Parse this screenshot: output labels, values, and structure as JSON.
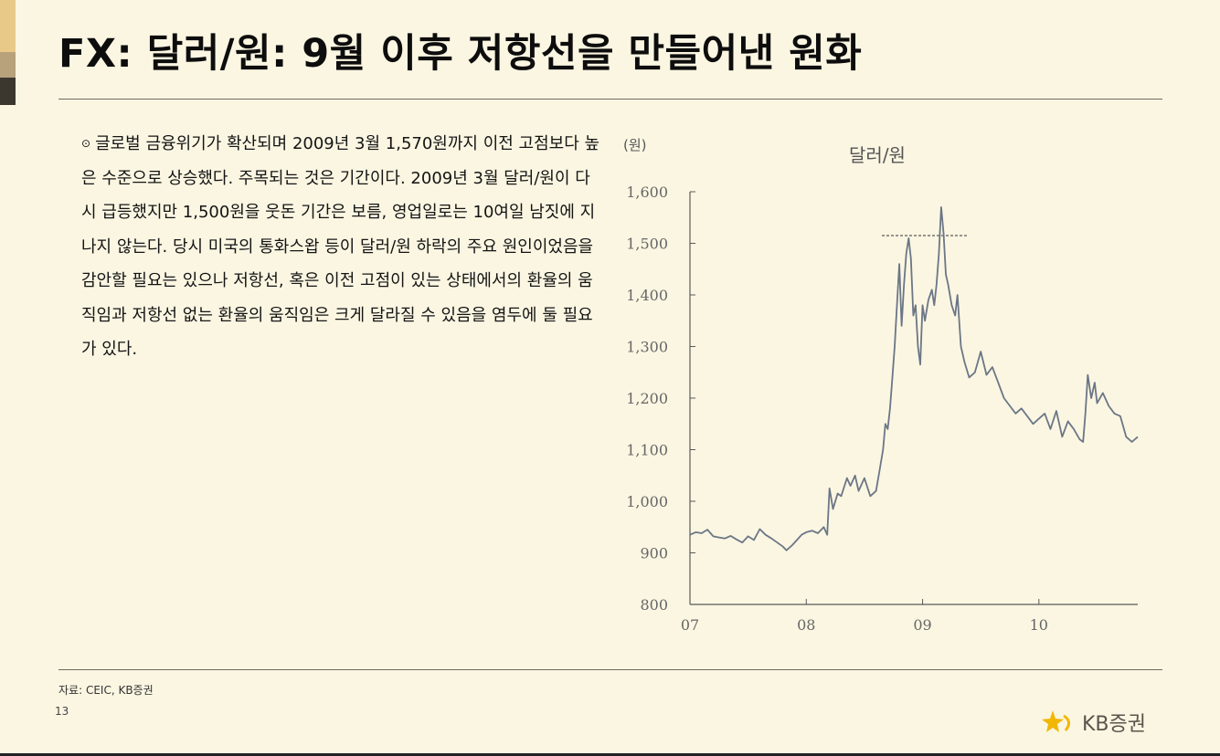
{
  "title": "FX: 달러/원: 9월 이후 저항선을 만들어낸 원화",
  "body": {
    "bullet": "⊙",
    "text": "글로벌 금융위기가 확산되며 2009년 3월 1,570원까지 이전 고점보다 높은 수준으로 상승했다. 주목되는 것은 기간이다. 2009년 3월 달러/원이 다시 급등했지만 1,500원을 웃돈 기간은 보름, 영업일로는 10여일 남짓에 지나지 않는다. 당시 미국의 통화스왑 등이 달러/원 하락의 주요 원인이었음을 감안할 필요는 있으나 저항선, 혹은 이전 고점이 있는 상태에서의 환율의 움직임과 저항선 없는 환율의 움직임은 크게 달라질 수 있음을 염두에 둘 필요가 있다."
  },
  "footer": {
    "source": "자료: CEIC, KB증권",
    "page_number": "13",
    "logo_text": "KB증권"
  },
  "colors": {
    "background": "#fbf6e2",
    "line": "#6b7686",
    "axis": "#5a5a5a",
    "logo_star": "#f2b705"
  },
  "chart_data": {
    "type": "line",
    "title": "달러/원",
    "ylabel": "(원)",
    "xlabel": "",
    "ylim": [
      800,
      1600
    ],
    "yticks": [
      800,
      900,
      1000,
      1100,
      1200,
      1300,
      1400,
      1500,
      1600
    ],
    "ytick_labels": [
      "800",
      "900",
      "1,000",
      "1,100",
      "1,200",
      "1,300",
      "1,400",
      "1,500",
      "1,600"
    ],
    "xlim": [
      2007.0,
      2010.85
    ],
    "xticks": [
      2007,
      2008,
      2009,
      2010
    ],
    "xtick_labels": [
      "07",
      "08",
      "09",
      "10"
    ],
    "grid": false,
    "reference_line": {
      "y": 1515,
      "x_from": 2008.65,
      "x_to": 2009.38,
      "style": "dashed"
    },
    "series": [
      {
        "name": "",
        "x": [
          2007.0,
          2007.05,
          2007.1,
          2007.15,
          2007.2,
          2007.25,
          2007.3,
          2007.35,
          2007.4,
          2007.45,
          2007.5,
          2007.55,
          2007.6,
          2007.65,
          2007.7,
          2007.75,
          2007.8,
          2007.83,
          2007.88,
          2007.92,
          2007.96,
          2008.0,
          2008.05,
          2008.1,
          2008.15,
          2008.18,
          2008.2,
          2008.23,
          2008.27,
          2008.3,
          2008.35,
          2008.38,
          2008.42,
          2008.45,
          2008.5,
          2008.55,
          2008.6,
          2008.63,
          2008.66,
          2008.68,
          2008.7,
          2008.72,
          2008.74,
          2008.76,
          2008.78,
          2008.8,
          2008.82,
          2008.84,
          2008.86,
          2008.88,
          2008.9,
          2008.92,
          2008.94,
          2008.96,
          2008.98,
          2009.0,
          2009.02,
          2009.05,
          2009.08,
          2009.1,
          2009.12,
          2009.14,
          2009.16,
          2009.18,
          2009.2,
          2009.22,
          2009.25,
          2009.28,
          2009.3,
          2009.33,
          2009.36,
          2009.4,
          2009.45,
          2009.5,
          2009.55,
          2009.6,
          2009.65,
          2009.7,
          2009.75,
          2009.8,
          2009.85,
          2009.9,
          2009.95,
          2010.0,
          2010.05,
          2010.1,
          2010.15,
          2010.2,
          2010.25,
          2010.3,
          2010.35,
          2010.38,
          2010.4,
          2010.42,
          2010.45,
          2010.48,
          2010.5,
          2010.55,
          2010.6,
          2010.65,
          2010.7,
          2010.75,
          2010.8,
          2010.85
        ],
        "values": [
          935,
          940,
          938,
          945,
          932,
          930,
          928,
          933,
          926,
          920,
          932,
          925,
          946,
          935,
          928,
          920,
          912,
          905,
          915,
          925,
          935,
          940,
          943,
          938,
          950,
          935,
          1025,
          985,
          1015,
          1010,
          1045,
          1030,
          1050,
          1020,
          1045,
          1010,
          1020,
          1060,
          1100,
          1150,
          1140,
          1180,
          1240,
          1300,
          1380,
          1460,
          1340,
          1420,
          1480,
          1510,
          1470,
          1360,
          1380,
          1300,
          1265,
          1380,
          1350,
          1390,
          1410,
          1380,
          1420,
          1480,
          1570,
          1520,
          1440,
          1420,
          1380,
          1360,
          1400,
          1300,
          1270,
          1240,
          1250,
          1290,
          1245,
          1260,
          1230,
          1200,
          1185,
          1170,
          1180,
          1165,
          1150,
          1160,
          1170,
          1140,
          1175,
          1125,
          1155,
          1140,
          1120,
          1115,
          1170,
          1245,
          1200,
          1230,
          1190,
          1210,
          1185,
          1170,
          1165,
          1125,
          1115,
          1125
        ]
      }
    ]
  }
}
